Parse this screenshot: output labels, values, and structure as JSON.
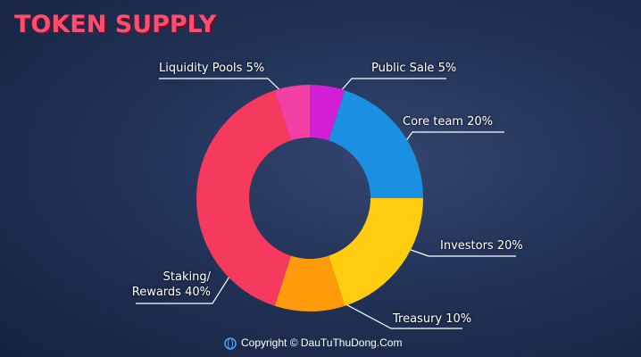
{
  "chart_data": {
    "type": "donut",
    "title": "TOKEN SUPPLY",
    "footer": "Copyright © DauTuThuDong.Com",
    "categories": [
      "Public Sale",
      "Core team",
      "Investors",
      "Treasury",
      "Staking/ Rewards",
      "Liquidity Pools"
    ],
    "values": [
      5,
      20,
      20,
      10,
      40,
      5
    ],
    "value_labels": [
      "5%",
      "20%",
      "20%",
      "10%",
      "40%",
      "5%"
    ],
    "colors": [
      "#d21fd6",
      "#1b90e2",
      "#ffcc0f",
      "#ff9a0a",
      "#f53a5e",
      "#f23fa6"
    ]
  }
}
